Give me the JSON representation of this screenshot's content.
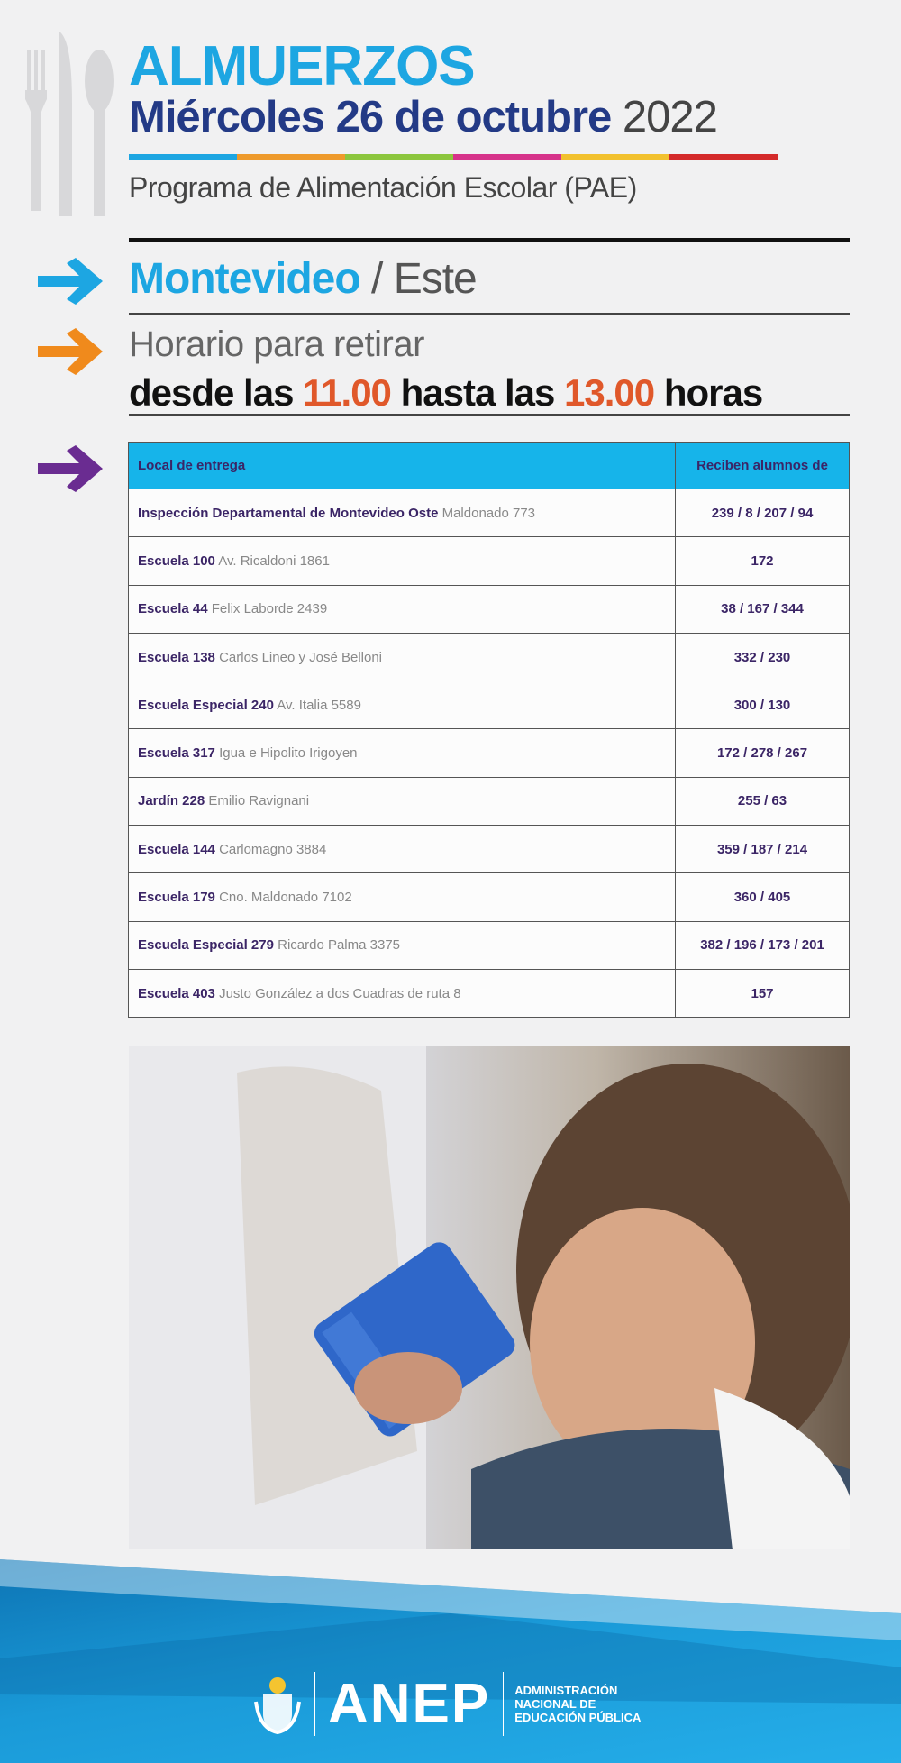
{
  "header": {
    "title": "ALMUERZOS",
    "date_bold": "Miércoles 26 de octubre",
    "year": "2022",
    "program": "Programa de Alimentación Escolar (PAE)",
    "colorbar": [
      "#1da6e2",
      "#ee9a2c",
      "#8cc63e",
      "#d6338a",
      "#f2c12e",
      "#d42a2a"
    ]
  },
  "location": {
    "city": "Montevideo",
    "separator": "/",
    "zone": "Este"
  },
  "schedule": {
    "label": "Horario para retirar",
    "desde": "desde las",
    "start": "11.00",
    "hasta": "hasta las",
    "end": "13.00",
    "horas": "horas"
  },
  "colors": {
    "arrow_blue": "#1da6e2",
    "arrow_orange": "#f08a1c",
    "arrow_purple": "#6a2c91",
    "table_header": "#16b4ea"
  },
  "table": {
    "headers": [
      "Local de entrega",
      "Reciben alumnos  de"
    ],
    "rows": [
      {
        "name": "Inspección Departamental de  Montevideo Oste",
        "address": "Maldonado 773",
        "schools": "239 / 8 / 207 / 94"
      },
      {
        "name": "Escuela 100",
        "address": "Av. Ricaldoni 1861",
        "schools": "172"
      },
      {
        "name": "Escuela 44",
        "address": "Felix Laborde 2439",
        "schools": "38 / 167 / 344"
      },
      {
        "name": "Escuela 138",
        "address": "Carlos Lineo y José Belloni",
        "schools": "332 / 230"
      },
      {
        "name": "Escuela Especial 240",
        "address": "Av. Italia 5589",
        "schools": "300 / 130"
      },
      {
        "name": "Escuela 317",
        "address": "Igua e Hipolito Irigoyen",
        "schools": "172 / 278 / 267"
      },
      {
        "name": "Jardín 228",
        "address": "Emilio Ravignani",
        "schools": "255 / 63"
      },
      {
        "name": "Escuela 144",
        "address": "Carlomagno 3884",
        "schools": "359 / 187 / 214"
      },
      {
        "name": "Escuela 179",
        "address": "Cno. Maldonado 7102",
        "schools": "360 / 405"
      },
      {
        "name": "Escuela Especial 279",
        "address": "Ricardo Palma 3375",
        "schools": "382 / 196 / 173 / 201"
      },
      {
        "name": "Escuela 403",
        "address": "Justo González a dos Cuadras de ruta 8",
        "schools": "157"
      }
    ]
  },
  "footer": {
    "logo": "ANEP",
    "org_line1": "ADMINISTRACIÓN",
    "org_line2": "NACIONAL DE",
    "org_line3": "EDUCACIÓN PÚBLICA"
  }
}
